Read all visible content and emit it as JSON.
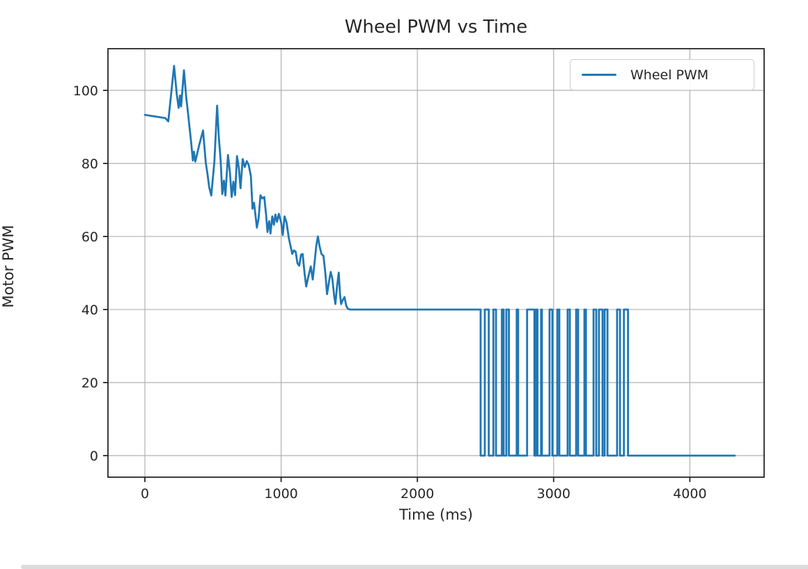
{
  "page": {
    "background": "#ffffff",
    "bottom_divider_color": "#dcdcdc"
  },
  "chart_data": {
    "type": "line",
    "title": "Wheel PWM vs Time",
    "xlabel": "Time (ms)",
    "ylabel": "Motor PWM",
    "legend": {
      "position": "upper right",
      "entries": [
        "Wheel PWM"
      ]
    },
    "grid": true,
    "colors": {
      "line": "#1f77b4",
      "grid": "#b0b0b0",
      "spine": "#262626",
      "text": "#262626",
      "legend_border": "#cccccc"
    },
    "xlim": [
      -271,
      4545
    ],
    "ylim": [
      -5.9,
      111.4
    ],
    "xticks": [
      0,
      1000,
      2000,
      3000,
      4000
    ],
    "yticks": [
      0,
      20,
      40,
      60,
      80,
      100
    ],
    "series": [
      {
        "name": "Wheel PWM",
        "points": [
          [
            0,
            93.3
          ],
          [
            150,
            92.4
          ],
          [
            172,
            91.5
          ],
          [
            214,
            106.7
          ],
          [
            234,
            98.9
          ],
          [
            248,
            95.2
          ],
          [
            258,
            98.6
          ],
          [
            266,
            95.6
          ],
          [
            287,
            105.5
          ],
          [
            303,
            98.2
          ],
          [
            318,
            93.3
          ],
          [
            340,
            85.6
          ],
          [
            352,
            80.8
          ],
          [
            360,
            83.2
          ],
          [
            370,
            80.5
          ],
          [
            400,
            85.2
          ],
          [
            427,
            89.0
          ],
          [
            447,
            80.2
          ],
          [
            459,
            77.2
          ],
          [
            472,
            73.5
          ],
          [
            487,
            71.2
          ],
          [
            510,
            80.5
          ],
          [
            530,
            95.8
          ],
          [
            543,
            87.0
          ],
          [
            556,
            80.8
          ],
          [
            568,
            71.6
          ],
          [
            580,
            75.3
          ],
          [
            591,
            71.2
          ],
          [
            610,
            82.3
          ],
          [
            624,
            77.5
          ],
          [
            637,
            70.8
          ],
          [
            650,
            75.0
          ],
          [
            662,
            71.3
          ],
          [
            676,
            82.0
          ],
          [
            690,
            78.6
          ],
          [
            702,
            73.2
          ],
          [
            718,
            81.2
          ],
          [
            733,
            79.0
          ],
          [
            748,
            80.6
          ],
          [
            762,
            79.5
          ],
          [
            778,
            76.5
          ],
          [
            790,
            67.6
          ],
          [
            801,
            69.2
          ],
          [
            812,
            65.8
          ],
          [
            822,
            62.4
          ],
          [
            835,
            65.0
          ],
          [
            848,
            71.3
          ],
          [
            862,
            70.4
          ],
          [
            876,
            70.8
          ],
          [
            890,
            65.8
          ],
          [
            900,
            61.2
          ],
          [
            912,
            64.2
          ],
          [
            922,
            60.8
          ],
          [
            935,
            65.5
          ],
          [
            947,
            63.2
          ],
          [
            958,
            66.0
          ],
          [
            970,
            64.0
          ],
          [
            983,
            66.2
          ],
          [
            1000,
            63.8
          ],
          [
            1012,
            60.4
          ],
          [
            1025,
            65.5
          ],
          [
            1040,
            63.8
          ],
          [
            1056,
            59.6
          ],
          [
            1070,
            57.2
          ],
          [
            1082,
            55.2
          ],
          [
            1094,
            56.2
          ],
          [
            1107,
            55.8
          ],
          [
            1120,
            52.6
          ],
          [
            1133,
            52.0
          ],
          [
            1146,
            55.0
          ],
          [
            1158,
            55.2
          ],
          [
            1172,
            50.0
          ],
          [
            1184,
            46.3
          ],
          [
            1200,
            49.0
          ],
          [
            1218,
            51.8
          ],
          [
            1232,
            48.2
          ],
          [
            1244,
            52.3
          ],
          [
            1258,
            57.5
          ],
          [
            1270,
            60.0
          ],
          [
            1282,
            57.3
          ],
          [
            1296,
            55.2
          ],
          [
            1311,
            54.7
          ],
          [
            1324,
            50.1
          ],
          [
            1337,
            44.2
          ],
          [
            1352,
            47.8
          ],
          [
            1364,
            50.3
          ],
          [
            1376,
            48.5
          ],
          [
            1390,
            43.5
          ],
          [
            1398,
            41.5
          ],
          [
            1410,
            46.2
          ],
          [
            1423,
            50.1
          ],
          [
            1432,
            44.3
          ],
          [
            1440,
            41.5
          ],
          [
            1452,
            42.6
          ],
          [
            1465,
            43.4
          ],
          [
            1478,
            41.0
          ],
          [
            1490,
            40.2
          ],
          [
            1505,
            40
          ],
          [
            2464,
            40
          ],
          [
            2464,
            0
          ],
          [
            2495,
            0
          ],
          [
            2495,
            40
          ],
          [
            2524,
            40
          ],
          [
            2524,
            0
          ],
          [
            2558,
            0
          ],
          [
            2558,
            40
          ],
          [
            2577,
            40
          ],
          [
            2577,
            0
          ],
          [
            2620,
            0
          ],
          [
            2620,
            40
          ],
          [
            2633,
            40
          ],
          [
            2633,
            0
          ],
          [
            2653,
            0
          ],
          [
            2653,
            40
          ],
          [
            2672,
            40
          ],
          [
            2672,
            0
          ],
          [
            2729,
            0
          ],
          [
            2729,
            40
          ],
          [
            2740,
            40
          ],
          [
            2740,
            0
          ],
          [
            2805,
            0
          ],
          [
            2805,
            40
          ],
          [
            2859,
            40
          ],
          [
            2859,
            0
          ],
          [
            2870,
            0
          ],
          [
            2870,
            40
          ],
          [
            2882,
            40
          ],
          [
            2882,
            0
          ],
          [
            2908,
            0
          ],
          [
            2908,
            40
          ],
          [
            2914,
            40
          ],
          [
            2914,
            0
          ],
          [
            2970,
            0
          ],
          [
            2970,
            40
          ],
          [
            2991,
            40
          ],
          [
            2991,
            0
          ],
          [
            3027,
            0
          ],
          [
            3027,
            40
          ],
          [
            3042,
            40
          ],
          [
            3042,
            0
          ],
          [
            3103,
            0
          ],
          [
            3103,
            40
          ],
          [
            3119,
            40
          ],
          [
            3119,
            0
          ],
          [
            3165,
            0
          ],
          [
            3165,
            40
          ],
          [
            3180,
            40
          ],
          [
            3180,
            0
          ],
          [
            3226,
            0
          ],
          [
            3226,
            40
          ],
          [
            3237,
            40
          ],
          [
            3237,
            0
          ],
          [
            3293,
            0
          ],
          [
            3293,
            40
          ],
          [
            3313,
            40
          ],
          [
            3313,
            0
          ],
          [
            3333,
            0
          ],
          [
            3333,
            40
          ],
          [
            3359,
            40
          ],
          [
            3359,
            0
          ],
          [
            3374,
            0
          ],
          [
            3374,
            40
          ],
          [
            3395,
            40
          ],
          [
            3395,
            0
          ],
          [
            3466,
            0
          ],
          [
            3466,
            40
          ],
          [
            3487,
            40
          ],
          [
            3487,
            0
          ],
          [
            3516,
            0
          ],
          [
            3516,
            40
          ],
          [
            3546,
            40
          ],
          [
            3546,
            0
          ],
          [
            4330,
            0
          ]
        ]
      }
    ]
  }
}
